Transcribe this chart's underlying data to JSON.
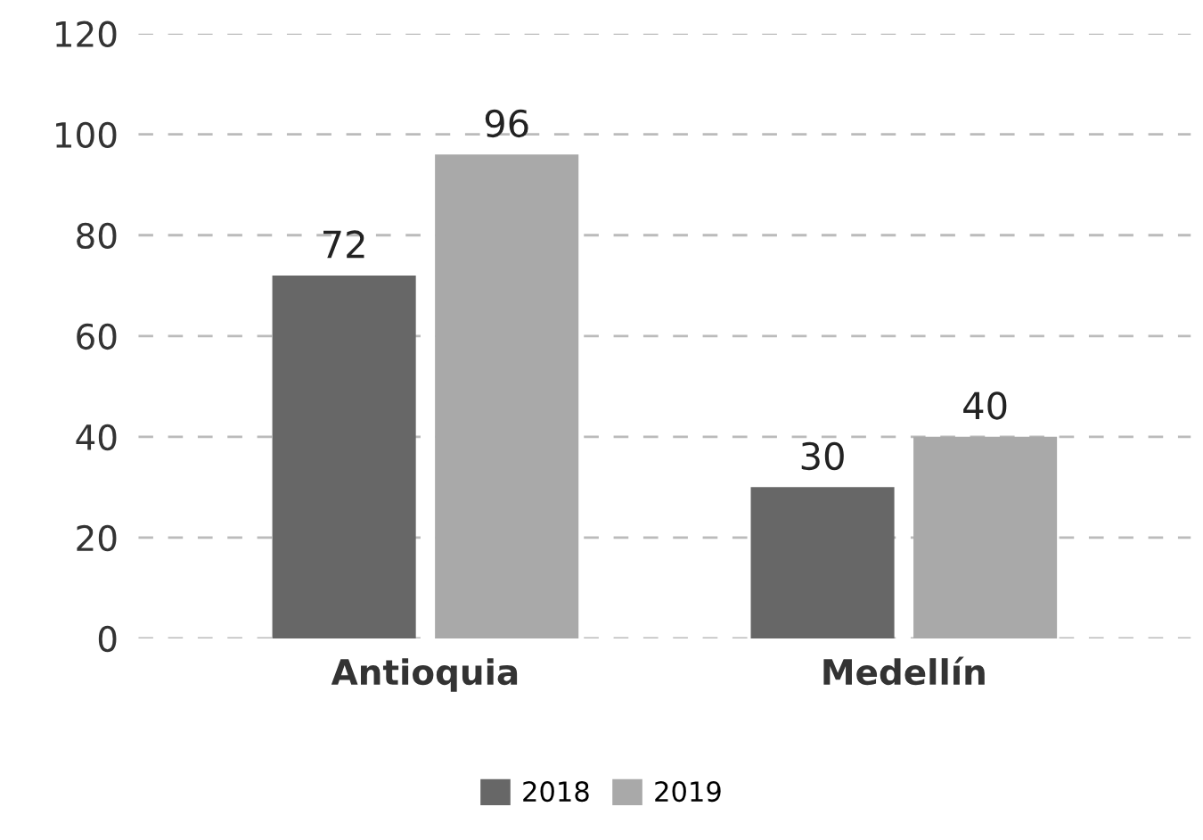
{
  "chart_data": {
    "type": "bar",
    "categories": [
      "Antioquia",
      "Medellín"
    ],
    "series": [
      {
        "name": "2018",
        "color": "#676767",
        "values": [
          72,
          30
        ]
      },
      {
        "name": "2019",
        "color": "#a9a9a9",
        "values": [
          96,
          40
        ]
      }
    ],
    "ylim": [
      0,
      120
    ],
    "yticks": [
      0,
      20,
      40,
      60,
      80,
      100,
      120
    ],
    "grid": "y",
    "legend": "bottom",
    "data_labels": true
  }
}
